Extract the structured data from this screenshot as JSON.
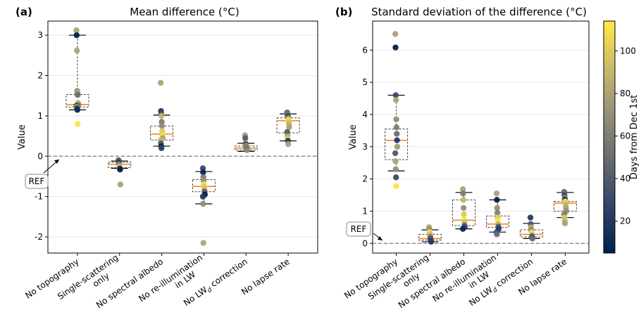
{
  "chart_data": [
    {
      "type": "scatter",
      "panel": "(a)",
      "title": "Mean difference (°C)",
      "ylabel": "Value",
      "ylim": [
        -2.4,
        3.35
      ],
      "yticks": [
        -2,
        -1,
        0,
        1,
        2,
        3
      ],
      "ref_label": "REF",
      "categories": [
        "No topography",
        "Single-scattering only",
        "No spectral albedo",
        "No re-illumination in LW",
        "No LWd correction",
        "No lapse rate"
      ],
      "category_lines": [
        [
          "No topography"
        ],
        [
          "Single-scattering",
          "only"
        ],
        [
          "No spectral albedo"
        ],
        [
          "No re-illumination",
          "in LW"
        ],
        [
          "No LW",
          "d",
          " correction"
        ],
        [
          "No lapse rate"
        ]
      ],
      "box": [
        {
          "q1": 1.22,
          "median": 1.28,
          "q3": 1.53,
          "wlow": 1.15,
          "whigh": 3.0
        },
        {
          "q1": -0.28,
          "median": -0.2,
          "q3": -0.15,
          "wlow": -0.3,
          "whigh": -0.12
        },
        {
          "q1": 0.4,
          "median": 0.55,
          "q3": 0.75,
          "wlow": 0.25,
          "whigh": 1.02
        },
        {
          "q1": -0.88,
          "median": -0.75,
          "q3": -0.58,
          "wlow": -1.18,
          "whigh": -0.38
        },
        {
          "q1": 0.15,
          "median": 0.2,
          "q3": 0.25,
          "wlow": 0.12,
          "whigh": 0.32
        },
        {
          "q1": 0.58,
          "median": 0.88,
          "q3": 0.95,
          "wlow": 0.38,
          "whigh": 1.05
        }
      ],
      "points": [
        [
          [
            3.12,
            80
          ],
          [
            3.0,
            5
          ],
          [
            2.62,
            80
          ],
          [
            1.62,
            70
          ],
          [
            1.58,
            80
          ],
          [
            1.52,
            50
          ],
          [
            1.32,
            75
          ],
          [
            1.3,
            112
          ],
          [
            1.28,
            60
          ],
          [
            1.25,
            20
          ],
          [
            1.22,
            95
          ],
          [
            1.2,
            40
          ],
          [
            1.18,
            30
          ],
          [
            1.15,
            10
          ],
          [
            0.8,
            112
          ]
        ],
        [
          [
            -0.1,
            40
          ],
          [
            -0.15,
            20
          ],
          [
            -0.2,
            60
          ],
          [
            -0.25,
            95
          ],
          [
            -0.28,
            100
          ],
          [
            -0.3,
            30
          ],
          [
            -0.33,
            5
          ],
          [
            -0.7,
            80
          ]
        ],
        [
          [
            1.82,
            80
          ],
          [
            1.12,
            20
          ],
          [
            1.05,
            30
          ],
          [
            1.0,
            90
          ],
          [
            0.85,
            60
          ],
          [
            0.75,
            70
          ],
          [
            0.62,
            100
          ],
          [
            0.5,
            112
          ],
          [
            0.45,
            80
          ],
          [
            0.4,
            90
          ],
          [
            0.32,
            40
          ],
          [
            0.25,
            10
          ],
          [
            0.2,
            25
          ]
        ],
        [
          [
            -0.3,
            30
          ],
          [
            -0.4,
            10
          ],
          [
            -0.52,
            60
          ],
          [
            -0.6,
            70
          ],
          [
            -0.7,
            112
          ],
          [
            -0.75,
            100
          ],
          [
            -0.82,
            90
          ],
          [
            -0.88,
            40
          ],
          [
            -0.95,
            5
          ],
          [
            -1.0,
            20
          ],
          [
            -1.18,
            70
          ],
          [
            -2.15,
            80
          ]
        ],
        [
          [
            0.52,
            80
          ],
          [
            0.45,
            40
          ],
          [
            0.32,
            60
          ],
          [
            0.28,
            20
          ],
          [
            0.25,
            100
          ],
          [
            0.22,
            10
          ],
          [
            0.2,
            112
          ],
          [
            0.18,
            30
          ],
          [
            0.15,
            70
          ]
        ],
        [
          [
            1.08,
            30
          ],
          [
            1.05,
            60
          ],
          [
            1.02,
            50
          ],
          [
            0.98,
            10
          ],
          [
            0.95,
            70
          ],
          [
            0.9,
            112
          ],
          [
            0.85,
            100
          ],
          [
            0.8,
            90
          ],
          [
            0.72,
            80
          ],
          [
            0.6,
            40
          ],
          [
            0.5,
            75
          ],
          [
            0.45,
            100
          ],
          [
            0.38,
            20
          ],
          [
            0.3,
            80
          ]
        ]
      ]
    },
    {
      "type": "scatter",
      "panel": "(b)",
      "title": "Standard deviation of the difference (°C)",
      "ylabel": "Value",
      "ylim": [
        -0.3,
        6.9
      ],
      "yticks": [
        0,
        1,
        2,
        3,
        4,
        5,
        6
      ],
      "ref_label": "REF",
      "categories": [
        "No topography",
        "Single-scattering only",
        "No spectral albedo",
        "No re-illumination in LW",
        "No LWd correction",
        "No lapse rate"
      ],
      "category_lines": [
        [
          "No topography"
        ],
        [
          "Single-scattering",
          "only"
        ],
        [
          "No spectral albedo"
        ],
        [
          "No re-illumination",
          "in LW"
        ],
        [
          "No LW",
          "d",
          " correction"
        ],
        [
          "No lapse rate"
        ]
      ],
      "box": [
        {
          "q1": 2.6,
          "median": 3.2,
          "q3": 3.55,
          "wlow": 2.25,
          "whigh": 4.6
        },
        {
          "q1": 0.1,
          "median": 0.15,
          "q3": 0.28,
          "wlow": 0.05,
          "whigh": 0.42
        },
        {
          "q1": 0.55,
          "median": 0.72,
          "q3": 1.35,
          "wlow": 0.45,
          "whigh": 1.58
        },
        {
          "q1": 0.5,
          "median": 0.6,
          "q3": 0.85,
          "wlow": 0.35,
          "whigh": 1.35
        },
        {
          "q1": 0.2,
          "median": 0.28,
          "q3": 0.42,
          "wlow": 0.15,
          "whigh": 0.62
        },
        {
          "q1": 1.0,
          "median": 1.25,
          "q3": 1.3,
          "wlow": 0.8,
          "whigh": 1.58
        }
      ],
      "points": [
        [
          [
            6.5,
            80
          ],
          [
            6.08,
            5
          ],
          [
            4.6,
            30
          ],
          [
            4.45,
            80
          ],
          [
            3.85,
            70
          ],
          [
            3.6,
            60
          ],
          [
            3.4,
            50
          ],
          [
            3.2,
            20
          ],
          [
            3.0,
            75
          ],
          [
            2.8,
            40
          ],
          [
            2.55,
            80
          ],
          [
            2.3,
            70
          ],
          [
            2.05,
            30
          ],
          [
            1.78,
            112
          ]
        ],
        [
          [
            0.5,
            80
          ],
          [
            0.42,
            70
          ],
          [
            0.35,
            112
          ],
          [
            0.3,
            100
          ],
          [
            0.25,
            90
          ],
          [
            0.2,
            60
          ],
          [
            0.15,
            40
          ],
          [
            0.1,
            30
          ],
          [
            0.05,
            20
          ]
        ],
        [
          [
            1.68,
            80
          ],
          [
            1.55,
            60
          ],
          [
            1.35,
            90
          ],
          [
            1.1,
            70
          ],
          [
            0.9,
            100
          ],
          [
            0.75,
            112
          ],
          [
            0.65,
            90
          ],
          [
            0.55,
            40
          ],
          [
            0.5,
            30
          ],
          [
            0.45,
            10
          ]
        ],
        [
          [
            1.55,
            80
          ],
          [
            1.35,
            5
          ],
          [
            1.1,
            70
          ],
          [
            0.95,
            60
          ],
          [
            0.8,
            100
          ],
          [
            0.7,
            112
          ],
          [
            0.6,
            90
          ],
          [
            0.52,
            40
          ],
          [
            0.45,
            20
          ],
          [
            0.35,
            30
          ],
          [
            0.28,
            50
          ]
        ],
        [
          [
            0.8,
            20
          ],
          [
            0.6,
            40
          ],
          [
            0.5,
            80
          ],
          [
            0.4,
            60
          ],
          [
            0.35,
            100
          ],
          [
            0.3,
            112
          ],
          [
            0.25,
            70
          ],
          [
            0.2,
            30
          ],
          [
            0.15,
            50
          ]
        ],
        [
          [
            1.6,
            50
          ],
          [
            1.5,
            30
          ],
          [
            1.42,
            60
          ],
          [
            1.35,
            10
          ],
          [
            1.3,
            112
          ],
          [
            1.25,
            100
          ],
          [
            1.2,
            90
          ],
          [
            1.1,
            80
          ],
          [
            1.0,
            70
          ],
          [
            0.9,
            60
          ],
          [
            0.8,
            100
          ],
          [
            0.7,
            90
          ],
          [
            0.62,
            80
          ]
        ]
      ]
    }
  ],
  "colorbar": {
    "label": "Days from Dec 1st",
    "range": [
      5,
      114
    ],
    "ticks": [
      20,
      40,
      60,
      80,
      100
    ],
    "colors": [
      "#00204c",
      "#31446b",
      "#666970",
      "#958f78",
      "#cbba69",
      "#ffe945"
    ]
  },
  "style": {
    "median_color": "#ff7f0e",
    "box_color": "#444444",
    "ref_line_color": "#7f7f7f",
    "grid_color": "#e8e8e8"
  }
}
